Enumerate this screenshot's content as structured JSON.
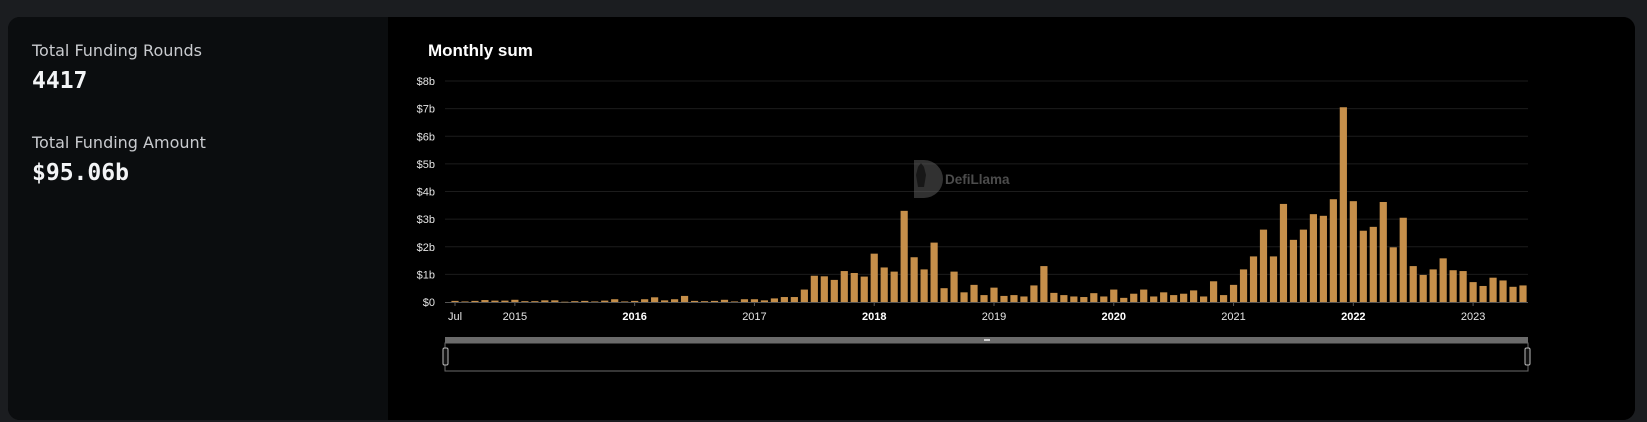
{
  "stats": {
    "rounds_label": "Total Funding Rounds",
    "rounds_value": "4417",
    "amount_label": "Total Funding Amount",
    "amount_value": "$95.06b"
  },
  "watermark": "DefiLlama",
  "colors": {
    "bar": "#c68f4a",
    "grid": "#1c1c1c",
    "axis": "#555555"
  },
  "chart_data": {
    "type": "bar",
    "title": "Monthly sum",
    "xlabel": "",
    "ylabel": "",
    "ylim": [
      0,
      8
    ],
    "y_unit": "billions USD",
    "y_ticks": [
      "$0",
      "$1b",
      "$2b",
      "$3b",
      "$4b",
      "$5b",
      "$6b",
      "$7b",
      "$8b"
    ],
    "x_ticks": [
      {
        "label": "Jul",
        "month": "2014-07",
        "bold": false
      },
      {
        "label": "2015",
        "month": "2015-01",
        "bold": false
      },
      {
        "label": "2016",
        "month": "2016-01",
        "bold": true
      },
      {
        "label": "2017",
        "month": "2017-01",
        "bold": false
      },
      {
        "label": "2018",
        "month": "2018-01",
        "bold": true
      },
      {
        "label": "2019",
        "month": "2019-01",
        "bold": false
      },
      {
        "label": "2020",
        "month": "2020-01",
        "bold": true
      },
      {
        "label": "2021",
        "month": "2021-01",
        "bold": false
      },
      {
        "label": "2022",
        "month": "2022-01",
        "bold": true
      },
      {
        "label": "2023",
        "month": "2023-01",
        "bold": false
      }
    ],
    "categories": [
      "2014-07",
      "2014-08",
      "2014-09",
      "2014-10",
      "2014-11",
      "2014-12",
      "2015-01",
      "2015-02",
      "2015-03",
      "2015-04",
      "2015-05",
      "2015-06",
      "2015-07",
      "2015-08",
      "2015-09",
      "2015-10",
      "2015-11",
      "2015-12",
      "2016-01",
      "2016-02",
      "2016-03",
      "2016-04",
      "2016-05",
      "2016-06",
      "2016-07",
      "2016-08",
      "2016-09",
      "2016-10",
      "2016-11",
      "2016-12",
      "2017-01",
      "2017-02",
      "2017-03",
      "2017-04",
      "2017-05",
      "2017-06",
      "2017-07",
      "2017-08",
      "2017-09",
      "2017-10",
      "2017-11",
      "2017-12",
      "2018-01",
      "2018-02",
      "2018-03",
      "2018-04",
      "2018-05",
      "2018-06",
      "2018-07",
      "2018-08",
      "2018-09",
      "2018-10",
      "2018-11",
      "2018-12",
      "2019-01",
      "2019-02",
      "2019-03",
      "2019-04",
      "2019-05",
      "2019-06",
      "2019-07",
      "2019-08",
      "2019-09",
      "2019-10",
      "2019-11",
      "2019-12",
      "2020-01",
      "2020-02",
      "2020-03",
      "2020-04",
      "2020-05",
      "2020-06",
      "2020-07",
      "2020-08",
      "2020-09",
      "2020-10",
      "2020-11",
      "2020-12",
      "2021-01",
      "2021-02",
      "2021-03",
      "2021-04",
      "2021-05",
      "2021-06",
      "2021-07",
      "2021-08",
      "2021-09",
      "2021-10",
      "2021-11",
      "2021-12",
      "2022-01",
      "2022-02",
      "2022-03",
      "2022-04",
      "2022-05",
      "2022-06",
      "2022-07",
      "2022-08",
      "2022-09",
      "2022-10",
      "2022-11",
      "2022-12",
      "2023-01",
      "2023-02",
      "2023-03",
      "2023-04",
      "2023-05",
      "2023-06"
    ],
    "values": [
      0.04,
      0.02,
      0.04,
      0.07,
      0.05,
      0.05,
      0.08,
      0.03,
      0.03,
      0.06,
      0.06,
      0.01,
      0.03,
      0.04,
      0.02,
      0.05,
      0.1,
      0.02,
      0.04,
      0.1,
      0.17,
      0.06,
      0.1,
      0.22,
      0.04,
      0.03,
      0.04,
      0.08,
      0.02,
      0.1,
      0.1,
      0.06,
      0.13,
      0.18,
      0.18,
      0.45,
      0.95,
      0.93,
      0.8,
      1.12,
      1.05,
      0.92,
      1.75,
      1.25,
      1.1,
      3.3,
      1.62,
      1.18,
      2.15,
      0.5,
      1.1,
      0.35,
      0.62,
      0.25,
      0.52,
      0.22,
      0.25,
      0.2,
      0.6,
      1.3,
      0.33,
      0.25,
      0.2,
      0.18,
      0.32,
      0.2,
      0.45,
      0.15,
      0.3,
      0.45,
      0.2,
      0.35,
      0.25,
      0.3,
      0.42,
      0.2,
      0.75,
      0.25,
      0.62,
      1.18,
      1.65,
      2.62,
      1.65,
      3.55,
      2.25,
      2.62,
      3.18,
      3.12,
      3.72,
      7.05,
      3.65,
      2.58,
      2.72,
      3.62,
      1.98,
      3.05,
      1.3,
      0.98,
      1.18,
      1.58,
      1.15,
      1.12,
      0.72,
      0.58,
      0.88,
      0.78,
      0.55,
      0.6
    ]
  }
}
